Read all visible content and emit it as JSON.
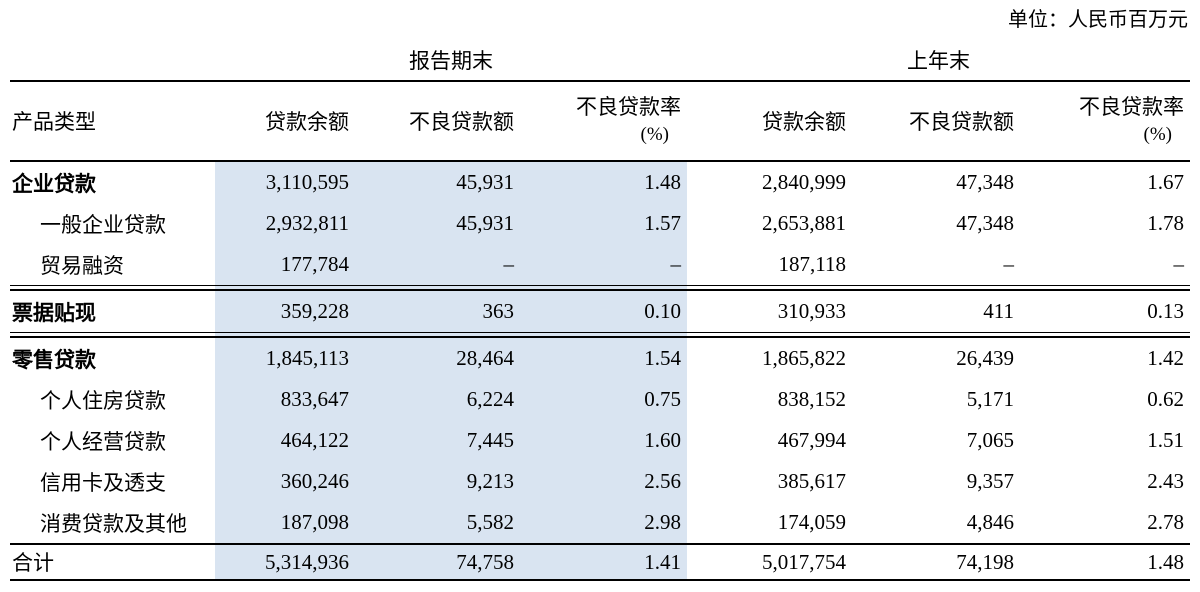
{
  "unit_note": "单位：人民币百万元",
  "colors": {
    "highlight": "#d9e4f1",
    "rule": "#000000"
  },
  "table": {
    "group_headers": {
      "current": "报告期末",
      "previous": "上年末"
    },
    "column_headers": {
      "product": "产品类型",
      "balance": "贷款余额",
      "npl_amount": "不良贷款额",
      "npl_ratio_line1": "不良贷款率",
      "npl_ratio_line2": "(%)"
    },
    "rows": [
      {
        "label": "企业贷款",
        "bold": true,
        "indent": false,
        "section_end": false,
        "values": [
          "3,110,595",
          "45,931",
          "1.48",
          "2,840,999",
          "47,348",
          "1.67"
        ]
      },
      {
        "label": "一般企业贷款",
        "bold": false,
        "indent": true,
        "section_end": false,
        "values": [
          "2,932,811",
          "45,931",
          "1.57",
          "2,653,881",
          "47,348",
          "1.78"
        ]
      },
      {
        "label": "贸易融资",
        "bold": false,
        "indent": true,
        "section_end": true,
        "values": [
          "177,784",
          "–",
          "–",
          "187,118",
          "–",
          "–"
        ]
      },
      {
        "label": "票据贴现",
        "bold": true,
        "indent": false,
        "section_end": true,
        "values": [
          "359,228",
          "363",
          "0.10",
          "310,933",
          "411",
          "0.13"
        ]
      },
      {
        "label": "零售贷款",
        "bold": true,
        "indent": false,
        "section_end": false,
        "values": [
          "1,845,113",
          "28,464",
          "1.54",
          "1,865,822",
          "26,439",
          "1.42"
        ]
      },
      {
        "label": "个人住房贷款",
        "bold": false,
        "indent": true,
        "section_end": false,
        "values": [
          "833,647",
          "6,224",
          "0.75",
          "838,152",
          "5,171",
          "0.62"
        ]
      },
      {
        "label": "个人经营贷款",
        "bold": false,
        "indent": true,
        "section_end": false,
        "values": [
          "464,122",
          "7,445",
          "1.60",
          "467,994",
          "7,065",
          "1.51"
        ]
      },
      {
        "label": "信用卡及透支",
        "bold": false,
        "indent": true,
        "section_end": false,
        "values": [
          "360,246",
          "9,213",
          "2.56",
          "385,617",
          "9,357",
          "2.43"
        ]
      },
      {
        "label": "消费贷款及其他",
        "bold": false,
        "indent": true,
        "section_end": false,
        "values": [
          "187,098",
          "5,582",
          "2.98",
          "174,059",
          "4,846",
          "2.78"
        ]
      }
    ],
    "total_row": {
      "label": "合计",
      "values": [
        "5,314,936",
        "74,758",
        "1.41",
        "5,017,754",
        "74,198",
        "1.48"
      ]
    }
  }
}
